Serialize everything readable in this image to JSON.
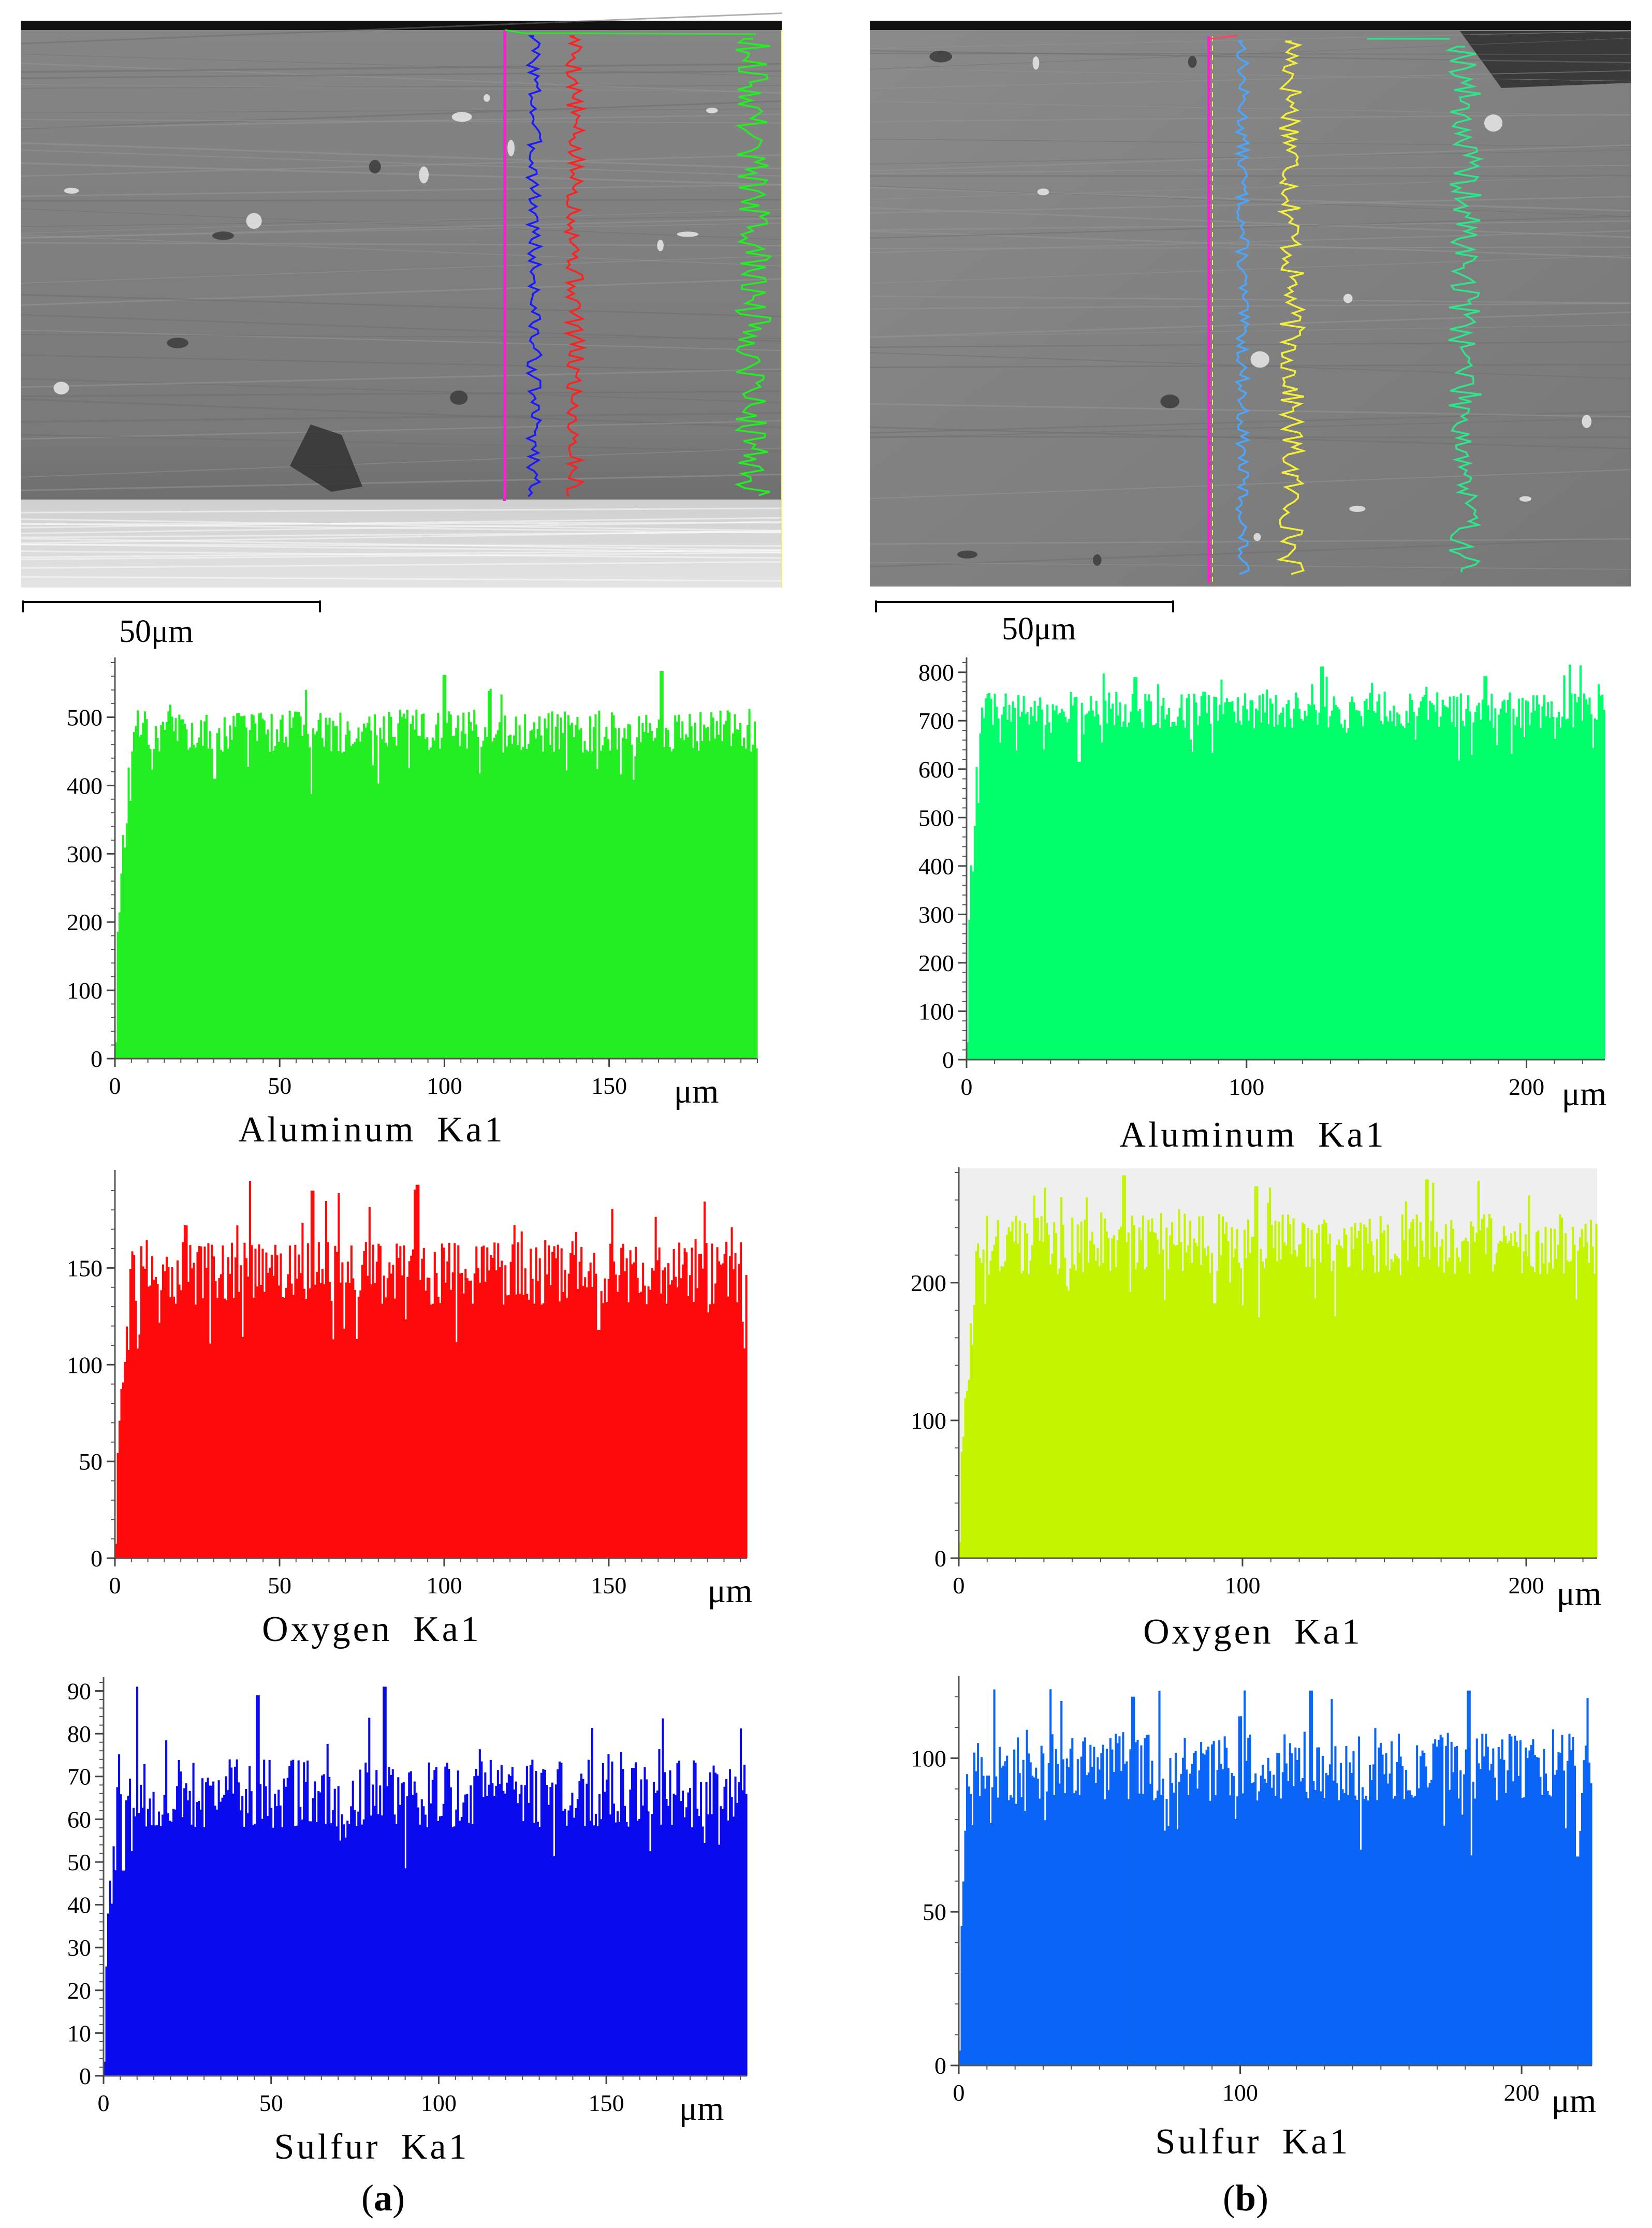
{
  "figure": {
    "colors": {
      "sem_bg": "#808080",
      "sem_substrate": "#d6d6d6",
      "magenta": "#ff1fd0",
      "blue_a": "#1a1aff",
      "red_a": "#ff2020",
      "green_a": "#22ee22",
      "cyan_b": "#4aa6ff",
      "yellow_b": "#f4f03a",
      "mint_b": "#2fe58a",
      "pink_b": "#ff4060"
    }
  },
  "panels": [
    {
      "id": "a",
      "label_open": "(",
      "label_letter": "a",
      "label_close": ")",
      "sem": {
        "scale_label": "50μm"
      },
      "charts": [
        {
          "type": "bar",
          "element": "Aluminum",
          "line": "Ka1",
          "title": "Aluminum Ka1",
          "xunit": "μm",
          "xlim": [
            0,
            195
          ],
          "ylim": [
            0,
            580
          ],
          "xticks": [
            0,
            50,
            100,
            150
          ],
          "yticks": [
            0,
            100,
            200,
            300,
            400,
            500
          ],
          "color": "#22ee22",
          "plateau": 480,
          "ramp_end": 5,
          "noise": 32,
          "peaks": [
            [
              166,
              568
            ],
            [
              100,
              562
            ],
            [
              58,
              540
            ]
          ],
          "dips": [
            [
              30,
              410
            ]
          ]
        },
        {
          "type": "bar",
          "element": "Oxygen",
          "line": "Ka1",
          "title": "Oxygen Ka1",
          "xunit": "μm",
          "xlim": [
            0,
            192
          ],
          "ylim": [
            0,
            198
          ],
          "xticks": [
            0,
            50,
            100,
            150
          ],
          "yticks": [
            0,
            50,
            100,
            150
          ],
          "color": "#ff0a0a",
          "plateau": 148,
          "ramp_end": 5,
          "noise": 17,
          "peaks": [
            [
              41,
              195
            ],
            [
              92,
              193
            ],
            [
              60,
              190
            ]
          ],
          "dips": [
            [
              147,
              118
            ]
          ]
        },
        {
          "type": "bar",
          "element": "Sulfur",
          "line": "Ka1",
          "title": "Sulfur Ka1",
          "xunit": "μm",
          "xlim": [
            0,
            192
          ],
          "ylim": [
            0,
            92
          ],
          "xticks": [
            0,
            50,
            100,
            150
          ],
          "yticks": [
            0,
            10,
            20,
            30,
            40,
            50,
            60,
            70,
            80,
            90
          ],
          "color": "#0a0aee",
          "plateau": 66,
          "ramp_end": 4,
          "noise": 8,
          "peaks": [
            [
              10,
              91
            ],
            [
              84,
              91
            ],
            [
              46,
              89
            ]
          ],
          "dips": [
            [
              6,
              48
            ]
          ]
        }
      ]
    },
    {
      "id": "b",
      "label_open": "(",
      "label_letter": "b",
      "label_close": ")",
      "sem": {
        "scale_label": "50μm"
      },
      "charts": [
        {
          "type": "bar",
          "element": "Aluminum",
          "line": "Ka1",
          "title": "Aluminum Ka1",
          "xunit": "μm",
          "xlim": [
            0,
            228
          ],
          "ylim": [
            0,
            820
          ],
          "xticks": [
            0,
            100,
            200
          ],
          "yticks": [
            0,
            100,
            200,
            300,
            400,
            500,
            600,
            700,
            800
          ],
          "color": "#00ff6a",
          "plateau": 722,
          "ramp_end": 5,
          "noise": 38,
          "peaks": [
            [
              127,
              812
            ],
            [
              60,
              790
            ],
            [
              185,
              792
            ]
          ],
          "dips": [
            [
              40,
              615
            ]
          ]
        },
        {
          "type": "bar",
          "element": "Oxygen",
          "line": "Ka1",
          "title": "Oxygen Ka1",
          "xunit": "μm",
          "xlim": [
            0,
            225
          ],
          "ylim": [
            0,
            280
          ],
          "xticks": [
            0,
            100,
            200
          ],
          "yticks": [
            0,
            100,
            200
          ],
          "color": "#c4f500",
          "plateau": 228,
          "ramp_end": 6,
          "noise": 22,
          "peaks": [
            [
              58,
              278
            ],
            [
              165,
              275
            ],
            [
              105,
              270
            ]
          ],
          "dips": [
            [
              90,
              185
            ]
          ]
        },
        {
          "type": "bar",
          "element": "Sulfur",
          "line": "Ka1",
          "title": "Sulfur Ka1",
          "xunit": "μm",
          "xlim": [
            0,
            225
          ],
          "ylim": [
            0,
            125
          ],
          "xticks": [
            0,
            100,
            200
          ],
          "yticks": [
            0,
            50,
            100
          ],
          "color": "#0a64f5",
          "plateau": 97,
          "ramp_end": 3,
          "noise": 11,
          "peaks": [
            [
              125,
              122
            ],
            [
              181,
              122
            ],
            [
              62,
              120
            ]
          ],
          "dips": [
            [
              220,
              68
            ]
          ]
        }
      ]
    }
  ],
  "chart_data": [
    {
      "type": "bar",
      "panel": "a",
      "title": "Aluminum Ka1",
      "xlabel": "μm",
      "ylabel": "",
      "xlim": [
        0,
        195
      ],
      "ylim": [
        0,
        580
      ],
      "x": [
        0,
        2,
        4,
        6,
        10,
        20,
        30,
        40,
        50,
        75,
        100,
        125,
        150,
        166,
        180,
        195
      ],
      "values": [
        30,
        240,
        420,
        480,
        490,
        495,
        430,
        490,
        500,
        500,
        505,
        495,
        500,
        560,
        495,
        475
      ]
    },
    {
      "type": "bar",
      "panel": "a",
      "title": "Oxygen Ka1",
      "xlabel": "μm",
      "ylabel": "",
      "xlim": [
        0,
        192
      ],
      "ylim": [
        0,
        198
      ],
      "x": [
        0,
        2,
        4,
        6,
        10,
        20,
        40,
        60,
        92,
        100,
        125,
        147,
        150,
        175,
        192
      ],
      "values": [
        5,
        100,
        130,
        145,
        148,
        155,
        190,
        165,
        190,
        155,
        152,
        120,
        155,
        160,
        150
      ]
    },
    {
      "type": "bar",
      "panel": "a",
      "title": "Sulfur Ka1",
      "xlabel": "μm",
      "ylabel": "",
      "xlim": [
        0,
        192
      ],
      "ylim": [
        0,
        92
      ],
      "x": [
        0,
        2,
        4,
        6,
        10,
        25,
        46,
        50,
        84,
        100,
        125,
        150,
        175,
        192
      ],
      "values": [
        5,
        45,
        55,
        50,
        90,
        70,
        88,
        68,
        90,
        70,
        68,
        68,
        66,
        60
      ]
    },
    {
      "type": "bar",
      "panel": "b",
      "title": "Aluminum Ka1",
      "xlabel": "μm",
      "ylabel": "",
      "xlim": [
        0,
        228
      ],
      "ylim": [
        0,
        820
      ],
      "x": [
        0,
        2,
        4,
        6,
        10,
        40,
        60,
        100,
        127,
        150,
        185,
        200,
        228
      ],
      "values": [
        250,
        560,
        650,
        720,
        740,
        615,
        745,
        735,
        800,
        740,
        780,
        735,
        700
      ]
    },
    {
      "type": "bar",
      "panel": "b",
      "title": "Oxygen Ka1",
      "xlabel": "μm",
      "ylabel": "",
      "xlim": [
        0,
        225
      ],
      "ylim": [
        0,
        280
      ],
      "x": [
        0,
        2,
        4,
        6,
        10,
        58,
        90,
        100,
        125,
        165,
        200,
        225
      ],
      "values": [
        20,
        130,
        180,
        225,
        235,
        270,
        185,
        235,
        240,
        270,
        240,
        235
      ]
    },
    {
      "type": "bar",
      "panel": "b",
      "title": "Sulfur Ka1",
      "xlabel": "μm",
      "ylabel": "",
      "xlim": [
        0,
        225
      ],
      "ylim": [
        0,
        125
      ],
      "x": [
        0,
        1,
        3,
        6,
        10,
        62,
        100,
        125,
        150,
        181,
        200,
        220,
        225
      ],
      "values": [
        5,
        40,
        60,
        100,
        105,
        118,
        95,
        120,
        88,
        120,
        100,
        70,
        85
      ]
    }
  ]
}
